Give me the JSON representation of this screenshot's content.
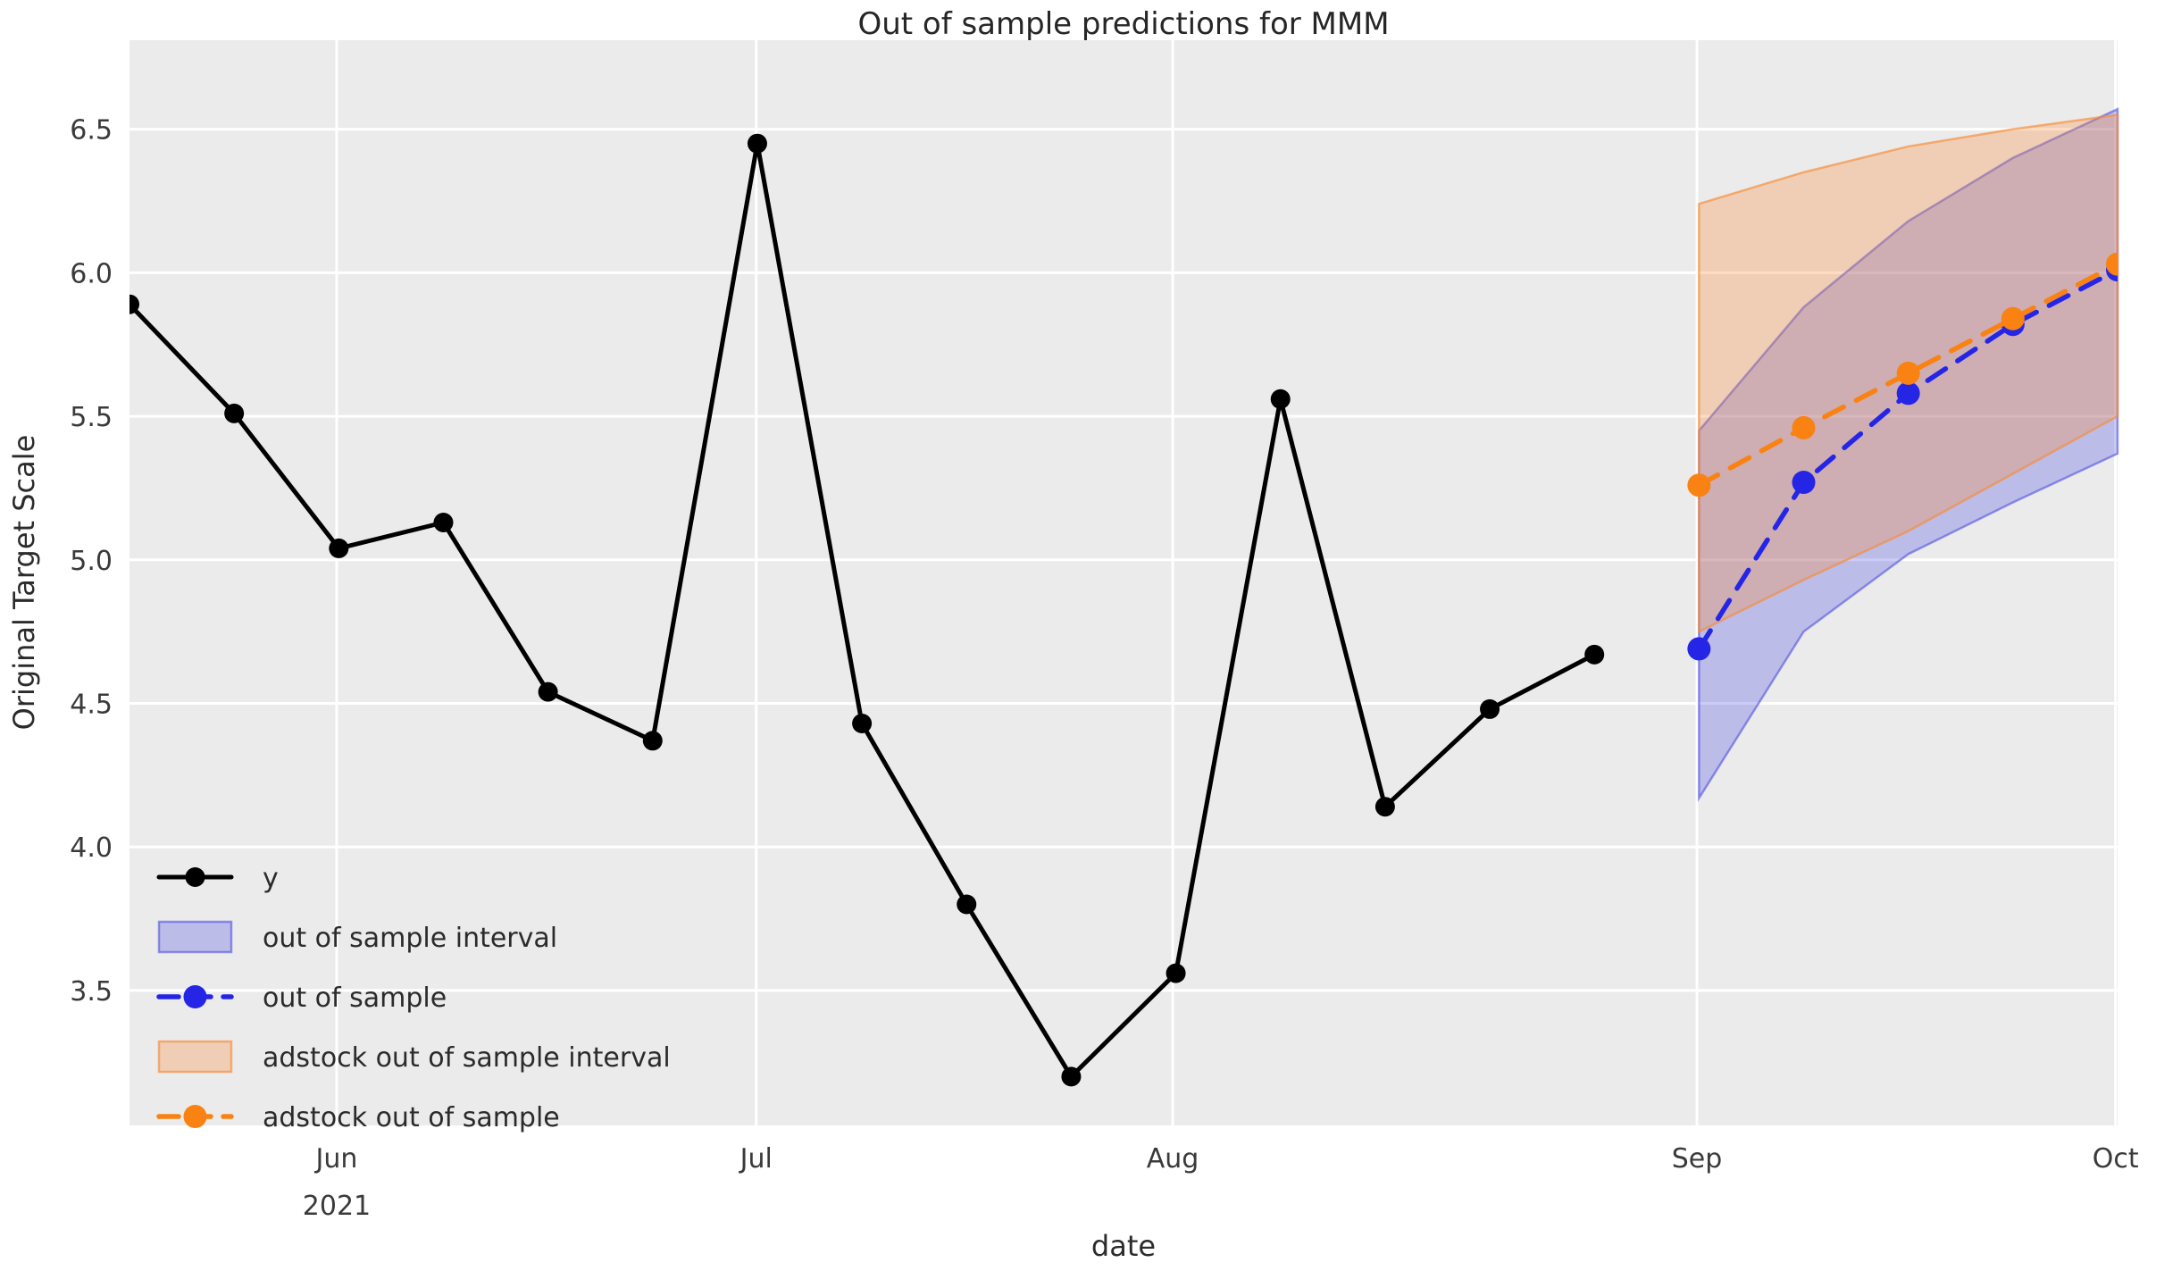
{
  "chart_data": {
    "type": "line",
    "title": "Out of sample predictions for MMM",
    "xlabel": "date",
    "ylabel": "Original Target Scale",
    "ylim": [
      3.03,
      6.81
    ],
    "grid": true,
    "legend_position": "lower left",
    "x_unit": "weekly index (0-19)",
    "n_points": 20,
    "x_ticks": [
      {
        "label": "Jun",
        "sublabel": "2021",
        "pos": 1.98
      },
      {
        "label": "Jul",
        "sublabel": "",
        "pos": 5.99
      },
      {
        "label": "Aug",
        "sublabel": "",
        "pos": 9.97
      },
      {
        "label": "Sep",
        "sublabel": "",
        "pos": 14.98
      },
      {
        "label": "Oct",
        "sublabel": "",
        "pos": 18.98
      }
    ],
    "y_ticks": [
      3.5,
      4.0,
      4.5,
      5.0,
      5.5,
      6.0,
      6.5
    ],
    "series": [
      {
        "name": "y",
        "style": "solid",
        "marker": true,
        "color_key": "black",
        "x": [
          0,
          1,
          2,
          3,
          4,
          5,
          6,
          7,
          8,
          9,
          10,
          11,
          12,
          13,
          14
        ],
        "values": [
          5.89,
          5.51,
          5.04,
          5.13,
          4.54,
          4.37,
          6.45,
          4.43,
          3.8,
          3.2,
          3.56,
          5.56,
          4.14,
          4.48,
          4.67
        ]
      },
      {
        "name": "out of sample",
        "style": "dashed",
        "marker": true,
        "color_key": "blue",
        "x": [
          15,
          16,
          17,
          18,
          19
        ],
        "values": [
          4.69,
          5.27,
          5.58,
          5.82,
          6.01
        ]
      },
      {
        "name": "adstock out of sample",
        "style": "dashed",
        "marker": true,
        "color_key": "orange",
        "x": [
          15,
          16,
          17,
          18,
          19
        ],
        "values": [
          5.26,
          5.46,
          5.65,
          5.84,
          6.03
        ]
      }
    ],
    "bands": [
      {
        "name": "out of sample interval",
        "color_key": "blue",
        "x": [
          15,
          16,
          17,
          18,
          19
        ],
        "lower": [
          4.17,
          4.75,
          5.02,
          5.2,
          5.37
        ],
        "upper": [
          5.45,
          5.88,
          6.18,
          6.4,
          6.57
        ]
      },
      {
        "name": "adstock out of sample interval",
        "color_key": "orange",
        "x": [
          15,
          16,
          17,
          18,
          19
        ],
        "lower": [
          4.75,
          4.93,
          5.1,
          5.3,
          5.5
        ],
        "upper": [
          6.24,
          6.35,
          6.44,
          6.5,
          6.55
        ]
      }
    ],
    "legend": [
      {
        "label": "y",
        "handle": "line-marker",
        "color_key": "black",
        "dash": false
      },
      {
        "label": "out of sample interval",
        "handle": "patch",
        "color_key": "blue",
        "dash": false
      },
      {
        "label": "out of sample",
        "handle": "line-marker",
        "color_key": "blue",
        "dash": true
      },
      {
        "label": "adstock out of sample interval",
        "handle": "patch",
        "color_key": "orange",
        "dash": false
      },
      {
        "label": "adstock out of sample",
        "handle": "line-marker",
        "color_key": "orange",
        "dash": true
      }
    ],
    "colors": {
      "black": "#000000",
      "blue": "#2525e6",
      "orange": "#f98212",
      "blue_fill": "rgba(70,70,225,0.28)",
      "orange_fill": "rgba(248,140,55,0.30)",
      "blue_edge": "rgba(70,70,225,0.55)",
      "orange_edge": "rgba(248,140,55,0.65)",
      "plot_bg": "#ebebeb",
      "grid": "#ffffff",
      "text": "#2b2b2b",
      "tick_text": "#3a3a3a"
    }
  }
}
